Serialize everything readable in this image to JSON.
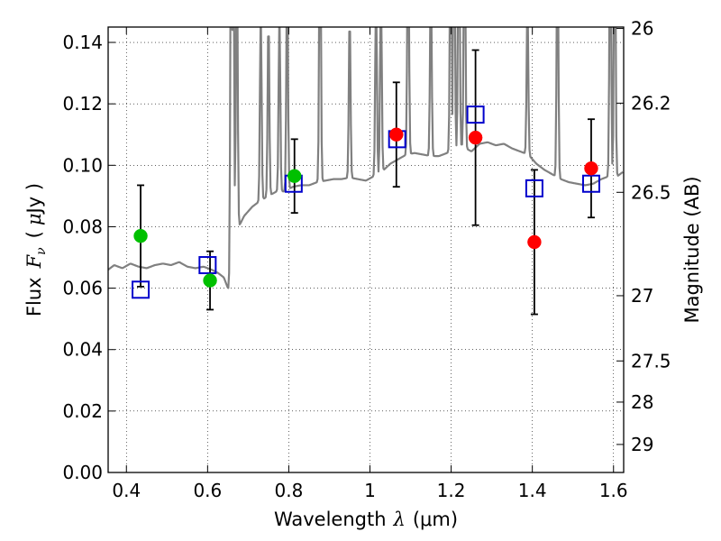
{
  "chart_data": {
    "type": "scatter",
    "xlabel": "Wavelength  λ (μm)",
    "xlabel_parts": [
      "Wavelength",
      "λ",
      "(μm)"
    ],
    "ylabel": "Flux  Fν ( μJy )",
    "ylabel_parts": [
      "Flux",
      "F",
      "ν",
      "(",
      "μ",
      "Jy )"
    ],
    "y2label": "Magnitude (AB)",
    "xlim": [
      0.355,
      1.625
    ],
    "ylim": [
      0.0,
      0.145
    ],
    "x_ticks": [
      0.4,
      0.6,
      0.8,
      1.0,
      1.2,
      1.4,
      1.6
    ],
    "x_tick_labels": [
      "0.4",
      "0.6",
      "0.8",
      "1",
      "1.2",
      "1.4",
      "1.6"
    ],
    "y_ticks": [
      0.0,
      0.02,
      0.04,
      0.06,
      0.08,
      0.1,
      0.12,
      0.14
    ],
    "y_tick_labels": [
      "0.00",
      "0.02",
      "0.04",
      "0.06",
      "0.08",
      "0.10",
      "0.12",
      "0.14"
    ],
    "y2_ticks": [
      {
        "label": "26",
        "mag": 26.0
      },
      {
        "label": "26.2",
        "mag": 26.2
      },
      {
        "label": "26.5",
        "mag": 26.5
      },
      {
        "label": "27",
        "mag": 27.0
      },
      {
        "label": "27.5",
        "mag": 27.5
      },
      {
        "label": "28",
        "mag": 28.0
      },
      {
        "label": "29",
        "mag": 29.0
      }
    ],
    "grid": true,
    "colors": {
      "spectrum": "#808080",
      "green_points": "#00c000",
      "red_points": "#ff0000",
      "model_squares": "#0000cc",
      "errorbars": "#000000"
    },
    "observed_green": [
      {
        "x": 0.435,
        "y": 0.077,
        "yerr": 0.0165
      },
      {
        "x": 0.606,
        "y": 0.0625,
        "yerr": 0.0095
      },
      {
        "x": 0.814,
        "y": 0.0965,
        "yerr": 0.012
      }
    ],
    "observed_red": [
      {
        "x": 1.065,
        "y": 0.11,
        "yerr": 0.017
      },
      {
        "x": 1.26,
        "y": 0.109,
        "yerr": 0.0285
      },
      {
        "x": 1.405,
        "y": 0.075,
        "yerr": 0.0235
      },
      {
        "x": 1.545,
        "y": 0.099,
        "yerr": 0.016
      }
    ],
    "model_squares": [
      {
        "x": 0.435,
        "y": 0.0595
      },
      {
        "x": 0.6,
        "y": 0.0675
      },
      {
        "x": 0.812,
        "y": 0.094
      },
      {
        "x": 1.067,
        "y": 0.1085
      },
      {
        "x": 1.26,
        "y": 0.1165
      },
      {
        "x": 1.405,
        "y": 0.0925
      },
      {
        "x": 1.545,
        "y": 0.094
      }
    ],
    "spectrum": {
      "continuum": [
        [
          0.355,
          0.066
        ],
        [
          0.37,
          0.0675
        ],
        [
          0.39,
          0.0665
        ],
        [
          0.41,
          0.068
        ],
        [
          0.43,
          0.067
        ],
        [
          0.45,
          0.0665
        ],
        [
          0.47,
          0.0675
        ],
        [
          0.49,
          0.068
        ],
        [
          0.51,
          0.0675
        ],
        [
          0.53,
          0.0685
        ],
        [
          0.55,
          0.067
        ],
        [
          0.57,
          0.0665
        ],
        [
          0.59,
          0.067
        ],
        [
          0.61,
          0.066
        ],
        [
          0.625,
          0.065
        ],
        [
          0.64,
          0.0635
        ],
        [
          0.65,
          0.06
        ],
        [
          0.655,
          0.059
        ],
        [
          0.66,
          0.065
        ],
        [
          0.665,
          0.078
        ],
        [
          0.675,
          0.0795
        ],
        [
          0.69,
          0.0835
        ],
        [
          0.71,
          0.0865
        ],
        [
          0.73,
          0.0885
        ],
        [
          0.75,
          0.09
        ],
        [
          0.77,
          0.0915
        ],
        [
          0.79,
          0.0915
        ],
        [
          0.81,
          0.093
        ],
        [
          0.83,
          0.0935
        ],
        [
          0.85,
          0.0935
        ],
        [
          0.87,
          0.0945
        ],
        [
          0.89,
          0.095
        ],
        [
          0.91,
          0.0955
        ],
        [
          0.93,
          0.0955
        ],
        [
          0.95,
          0.096
        ],
        [
          0.97,
          0.0955
        ],
        [
          0.99,
          0.095
        ],
        [
          1.01,
          0.0965
        ],
        [
          1.03,
          0.098
        ],
        [
          1.05,
          0.1005
        ],
        [
          1.07,
          0.102
        ],
        [
          1.09,
          0.1035
        ],
        [
          1.11,
          0.104
        ],
        [
          1.13,
          0.1035
        ],
        [
          1.15,
          0.103
        ],
        [
          1.17,
          0.103
        ],
        [
          1.19,
          0.104
        ],
        [
          1.21,
          0.1055
        ],
        [
          1.23,
          0.106
        ],
        [
          1.25,
          0.1045
        ],
        [
          1.27,
          0.107
        ],
        [
          1.29,
          0.1075
        ],
        [
          1.31,
          0.1065
        ],
        [
          1.33,
          0.107
        ],
        [
          1.35,
          0.1055
        ],
        [
          1.37,
          0.1045
        ],
        [
          1.39,
          0.1035
        ],
        [
          1.41,
          0.1005
        ],
        [
          1.43,
          0.0985
        ],
        [
          1.45,
          0.097
        ],
        [
          1.47,
          0.0955
        ],
        [
          1.49,
          0.0945
        ],
        [
          1.51,
          0.094
        ],
        [
          1.53,
          0.0935
        ],
        [
          1.55,
          0.094
        ],
        [
          1.57,
          0.0955
        ],
        [
          1.59,
          0.0965
        ],
        [
          1.61,
          0.0965
        ],
        [
          1.625,
          0.098
        ]
      ],
      "emission_lines": [
        {
          "x": 0.658,
          "peak": 0.145
        },
        {
          "x": 0.663,
          "peak": 0.145
        },
        {
          "x": 0.672,
          "peak": 0.13
        },
        {
          "x": 0.731,
          "peak": 0.102
        },
        {
          "x": 0.75,
          "peak": 0.099
        },
        {
          "x": 0.777,
          "peak": 0.101
        },
        {
          "x": 0.796,
          "peak": 0.115
        },
        {
          "x": 0.877,
          "peak": 0.145
        },
        {
          "x": 0.95,
          "peak": 0.1
        },
        {
          "x": 1.015,
          "peak": 0.108
        },
        {
          "x": 1.027,
          "peak": 0.11
        },
        {
          "x": 1.094,
          "peak": 0.139
        },
        {
          "x": 1.15,
          "peak": 0.113
        },
        {
          "x": 1.199,
          "peak": 0.145
        },
        {
          "x": 1.207,
          "peak": 0.145
        },
        {
          "x": 1.219,
          "peak": 0.145
        },
        {
          "x": 1.233,
          "peak": 0.14
        },
        {
          "x": 1.388,
          "peak": 0.103
        },
        {
          "x": 1.462,
          "peak": 0.13
        },
        {
          "x": 1.592,
          "peak": 0.145
        },
        {
          "x": 1.603,
          "peak": 0.145
        }
      ],
      "absorption_dips": [
        {
          "x": 0.75,
          "depth": 0.085
        },
        {
          "x": 0.77,
          "depth": 0.091
        },
        {
          "x": 0.79,
          "depth": 0.0915
        },
        {
          "x": 1.42,
          "depth": 0.098
        },
        {
          "x": 1.615,
          "depth": 0.0955
        }
      ]
    }
  }
}
